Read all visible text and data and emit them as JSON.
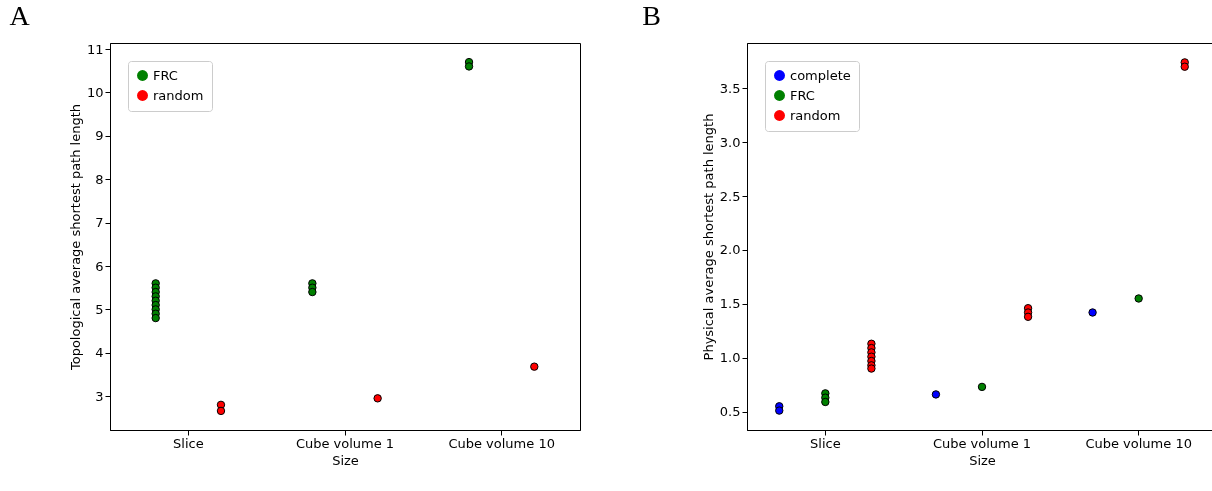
{
  "chart_data": [
    {
      "type": "scatter",
      "title": "A",
      "xlabel": "Size",
      "ylabel": "Topological average shortest path length",
      "categories": [
        "Slice",
        "Cube volume 1",
        "Cube volume 10"
      ],
      "ylim": [
        2.22,
        11.14
      ],
      "yticks": [
        3,
        4,
        5,
        6,
        7,
        8,
        9,
        10,
        11
      ],
      "grid": false,
      "legend": "top left",
      "marker": "circle",
      "series": [
        {
          "name": "FRC",
          "color": "#008000",
          "x": [
            "Slice",
            "Slice",
            "Slice",
            "Slice",
            "Slice",
            "Slice",
            "Slice",
            "Slice",
            "Slice",
            "Cube volume 1",
            "Cube volume 1",
            "Cube volume 1",
            "Cube volume 10",
            "Cube volume 10"
          ],
          "values": [
            5.6,
            5.5,
            5.4,
            5.3,
            5.2,
            5.1,
            5.0,
            4.9,
            4.8,
            5.6,
            5.5,
            5.4,
            10.7,
            10.6
          ]
        },
        {
          "name": "random",
          "color": "#ff0000",
          "x": [
            "Slice",
            "Slice",
            "Cube volume 1",
            "Cube volume 10"
          ],
          "values": [
            2.8,
            2.66,
            2.95,
            3.68
          ]
        }
      ]
    },
    {
      "type": "scatter",
      "title": "B",
      "xlabel": "Size",
      "ylabel": "Physical average shortest path length",
      "categories": [
        "Slice",
        "Cube volume 1",
        "Cube volume 10"
      ],
      "ylim": [
        0.33,
        3.92
      ],
      "yticks": [
        0.5,
        {
          "value": 1,
          "label": "1.0"
        },
        1.5,
        {
          "value": 2,
          "label": "2.0"
        },
        2.5,
        {
          "value": 3,
          "label": "3.0"
        },
        3.5
      ],
      "grid": false,
      "legend": "top left",
      "marker": "circle",
      "series": [
        {
          "name": "complete",
          "color": "#0000ff",
          "x": [
            "Slice",
            "Slice",
            "Cube volume 1",
            "Cube volume 10"
          ],
          "values": [
            0.55,
            0.51,
            0.66,
            1.42
          ]
        },
        {
          "name": "FRC",
          "color": "#008000",
          "x": [
            "Slice",
            "Slice",
            "Slice",
            "Cube volume 1",
            "Cube volume 10"
          ],
          "values": [
            0.67,
            0.63,
            0.59,
            0.73,
            1.55
          ]
        },
        {
          "name": "random",
          "color": "#ff0000",
          "x": [
            "Slice",
            "Slice",
            "Slice",
            "Slice",
            "Slice",
            "Slice",
            "Slice",
            "Cube volume 1",
            "Cube volume 1",
            "Cube volume 1",
            "Cube volume 10",
            "Cube volume 10"
          ],
          "values": [
            1.13,
            1.09,
            1.05,
            1.01,
            0.97,
            0.93,
            0.9,
            1.46,
            1.42,
            1.38,
            3.74,
            3.7
          ]
        }
      ]
    }
  ]
}
